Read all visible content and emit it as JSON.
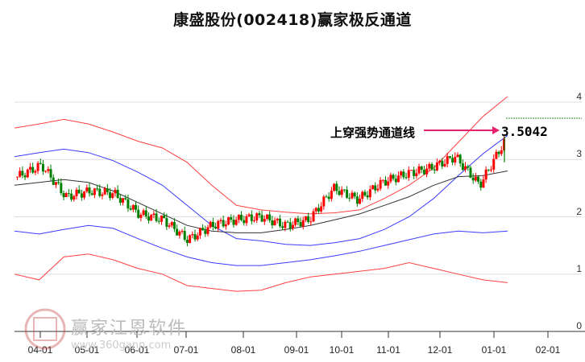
{
  "title": "康盛股份(002418)赢家极反通道",
  "annotation": {
    "label": "上穿强势通道线",
    "value": "3.5042",
    "arrow_color": "#e8206e"
  },
  "watermark": {
    "name": "赢家江恩软件",
    "url": "www.360gann.com"
  },
  "colors": {
    "up": "#ff0000",
    "down": "#008000",
    "outer_band": "#ff4040",
    "inner_band": "#3b3bff",
    "mid": "#333333",
    "grid": "#dddddd"
  },
  "chart_data": {
    "type": "candlestick",
    "title": "康盛股份(002418)赢家极反通道",
    "xlabel": "",
    "ylabel": "",
    "ylim": [
      0,
      4.2
    ],
    "y_ticks": [
      "0",
      "1",
      "2",
      "3",
      "4"
    ],
    "x_ticks": [
      "04-01",
      "05-01",
      "06-01",
      "07-01",
      "08-01",
      "09-01",
      "10-01",
      "11-01",
      "12-01",
      "01-01",
      "02-01"
    ],
    "grid": true,
    "series": [
      {
        "name": "outer_upper",
        "color": "#ff4040",
        "values": [
          3.55,
          3.62,
          3.7,
          3.62,
          3.48,
          3.32,
          3.2,
          2.95,
          2.55,
          2.2,
          2.12,
          2.08,
          2.05,
          2.07,
          2.12,
          2.32,
          2.55,
          2.85,
          3.3,
          3.75,
          4.1
        ]
      },
      {
        "name": "inner_upper",
        "color": "#3b3bff",
        "values": [
          3.05,
          3.12,
          3.18,
          3.12,
          2.98,
          2.78,
          2.55,
          2.2,
          1.85,
          1.62,
          1.58,
          1.52,
          1.5,
          1.55,
          1.62,
          1.78,
          2.0,
          2.32,
          2.72,
          3.1,
          3.42
        ]
      },
      {
        "name": "middle",
        "color": "#333333",
        "values": [
          2.55,
          2.6,
          2.65,
          2.6,
          2.45,
          2.25,
          2.05,
          1.85,
          1.75,
          1.72,
          1.72,
          1.78,
          1.85,
          1.95,
          2.05,
          2.2,
          2.35,
          2.55,
          2.7,
          2.72,
          2.8
        ]
      },
      {
        "name": "inner_lower",
        "color": "#3b3bff",
        "values": [
          1.75,
          1.7,
          1.78,
          1.85,
          1.8,
          1.62,
          1.45,
          1.3,
          1.2,
          1.15,
          1.15,
          1.2,
          1.25,
          1.32,
          1.4,
          1.5,
          1.6,
          1.7,
          1.75,
          1.72,
          1.75
        ]
      },
      {
        "name": "outer_lower",
        "color": "#ff4040",
        "values": [
          1.0,
          0.9,
          1.3,
          1.35,
          1.25,
          1.1,
          1.0,
          0.8,
          0.75,
          0.7,
          0.72,
          0.85,
          0.95,
          1.0,
          1.05,
          1.1,
          1.2,
          1.1,
          1.0,
          0.9,
          0.85
        ]
      },
      {
        "name": "price_close",
        "color": "#000000",
        "values": [
          2.7,
          2.9,
          2.35,
          2.45,
          2.4,
          2.05,
          1.95,
          1.6,
          1.85,
          1.95,
          2.0,
          1.85,
          1.95,
          2.5,
          2.3,
          2.6,
          2.75,
          2.85,
          3.05,
          2.55,
          3.3
        ]
      }
    ],
    "annotations": [
      {
        "text": "上穿强势通道线",
        "value": 3.5042
      }
    ]
  },
  "y_axis": [
    "4",
    "3",
    "2",
    "1",
    "0"
  ],
  "x_axis": [
    "04-01",
    "05-01",
    "06-01",
    "07-01",
    "08-01",
    "09-01",
    "10-01",
    "11-01",
    "12-01",
    "01-01",
    "02-01"
  ]
}
